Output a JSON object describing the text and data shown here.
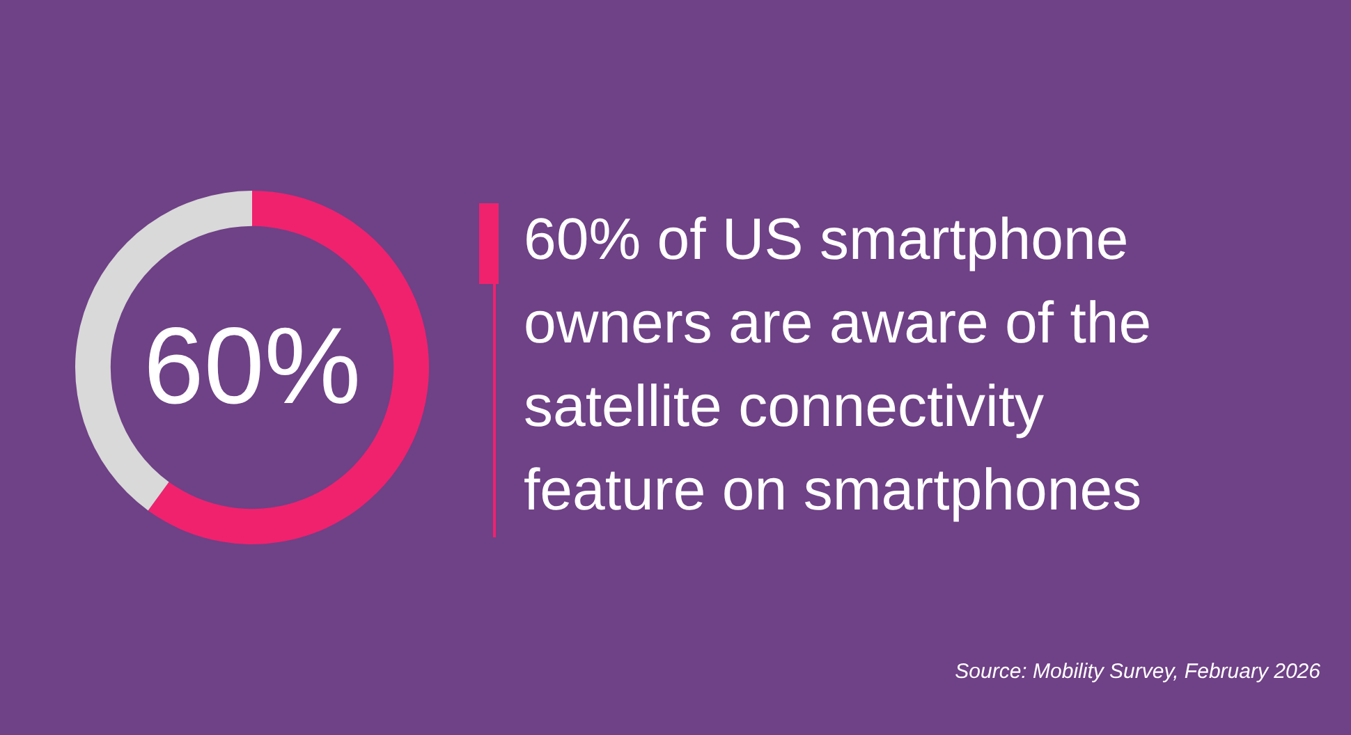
{
  "chart_data": {
    "type": "donut",
    "title": "60% of US smartphone owners are aware of the satellite connectivity feature on smartphones",
    "categories": [
      null,
      null
    ],
    "values": [
      60,
      40
    ],
    "colors": [
      "#f0226e",
      "#d9d9d9"
    ],
    "value_labels": [
      "60%",
      null
    ],
    "legend": false,
    "annotations": [
      "Source: Mobility Survey, February 2026"
    ]
  }
}
